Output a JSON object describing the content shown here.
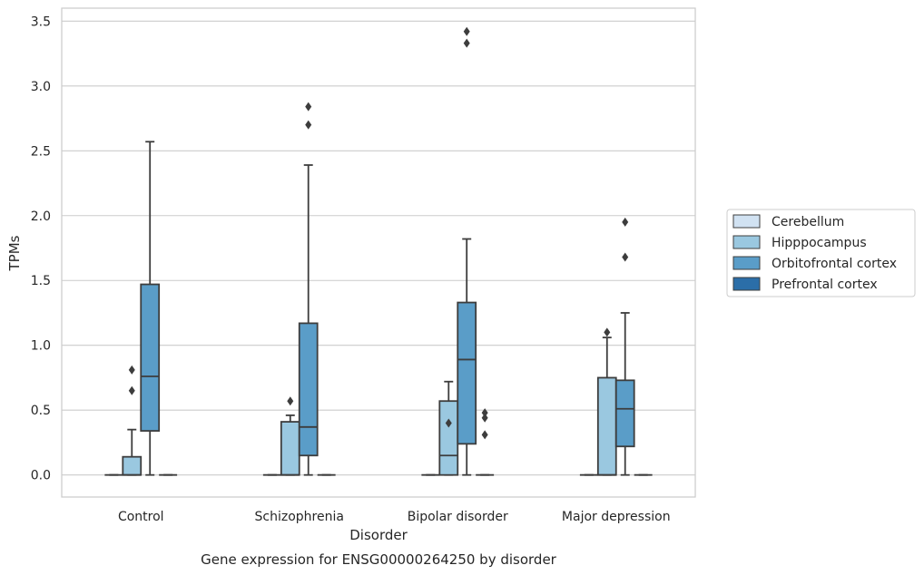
{
  "chart_data": {
    "type": "box",
    "caption": "Gene expression for ENSG00000264250 by disorder",
    "xlabel": "Disorder",
    "ylabel": "TPMs",
    "ylim": [
      -0.17,
      3.6
    ],
    "yticks": [
      "0.0",
      "0.5",
      "1.0",
      "1.5",
      "2.0",
      "2.5",
      "3.0",
      "3.5"
    ],
    "ytick_values": [
      0.0,
      0.5,
      1.0,
      1.5,
      2.0,
      2.5,
      3.0,
      3.5
    ],
    "grid": "horizontal",
    "legend_position": "right",
    "categories": [
      "Control",
      "Schizophrenia",
      "Bipolar disorder",
      "Major depression"
    ],
    "series": [
      {
        "name": "Cerebellum",
        "color": "#d1e2f2",
        "boxes": [
          {
            "whisker_low": 0,
            "q1": 0,
            "median": 0,
            "q3": 0,
            "whisker_high": 0,
            "outliers": []
          },
          {
            "whisker_low": 0,
            "q1": 0,
            "median": 0,
            "q3": 0,
            "whisker_high": 0,
            "outliers": []
          },
          {
            "whisker_low": 0,
            "q1": 0,
            "median": 0,
            "q3": 0,
            "whisker_high": 0,
            "outliers": []
          },
          {
            "whisker_low": 0,
            "q1": 0,
            "median": 0,
            "q3": 0,
            "whisker_high": 0,
            "outliers": []
          }
        ]
      },
      {
        "name": "Hipppocampus",
        "color": "#9ac8e0",
        "boxes": [
          {
            "whisker_low": 0,
            "q1": 0,
            "median": 0,
            "q3": 0.14,
            "whisker_high": 0.35,
            "outliers": [
              0.65,
              0.81
            ]
          },
          {
            "whisker_low": 0,
            "q1": 0,
            "median": 0,
            "q3": 0.41,
            "whisker_high": 0.46,
            "outliers": [
              0.57
            ]
          },
          {
            "whisker_low": 0,
            "q1": 0,
            "median": 0.15,
            "q3": 0.57,
            "whisker_high": 0.72,
            "outliers": [
              0.4
            ]
          },
          {
            "whisker_low": 0,
            "q1": 0,
            "median": 0,
            "q3": 0.75,
            "whisker_high": 1.06,
            "outliers": [
              1.1
            ]
          }
        ]
      },
      {
        "name": "Orbitofrontal cortex",
        "color": "#5a9dc8",
        "boxes": [
          {
            "whisker_low": 0,
            "q1": 0.34,
            "median": 0.76,
            "q3": 1.47,
            "whisker_high": 2.57,
            "outliers": []
          },
          {
            "whisker_low": 0,
            "q1": 0.15,
            "median": 0.37,
            "q3": 1.17,
            "whisker_high": 2.39,
            "outliers": [
              2.7,
              2.84
            ]
          },
          {
            "whisker_low": 0,
            "q1": 0.24,
            "median": 0.89,
            "q3": 1.33,
            "whisker_high": 1.82,
            "outliers": [
              3.33,
              3.42
            ]
          },
          {
            "whisker_low": 0,
            "q1": 0.22,
            "median": 0.51,
            "q3": 0.73,
            "whisker_high": 1.25,
            "outliers": [
              1.68,
              1.95
            ]
          }
        ]
      },
      {
        "name": "Prefrontal cortex",
        "color": "#2b6ea8",
        "boxes": [
          {
            "whisker_low": 0,
            "q1": 0,
            "median": 0,
            "q3": 0,
            "whisker_high": 0,
            "outliers": []
          },
          {
            "whisker_low": 0,
            "q1": 0,
            "median": 0,
            "q3": 0,
            "whisker_high": 0,
            "outliers": []
          },
          {
            "whisker_low": 0,
            "q1": 0,
            "median": 0,
            "q3": 0,
            "whisker_high": 0,
            "outliers": [
              0.31,
              0.44,
              0.48
            ]
          },
          {
            "whisker_low": 0,
            "q1": 0,
            "median": 0,
            "q3": 0,
            "whisker_high": 0,
            "outliers": []
          }
        ]
      }
    ]
  }
}
